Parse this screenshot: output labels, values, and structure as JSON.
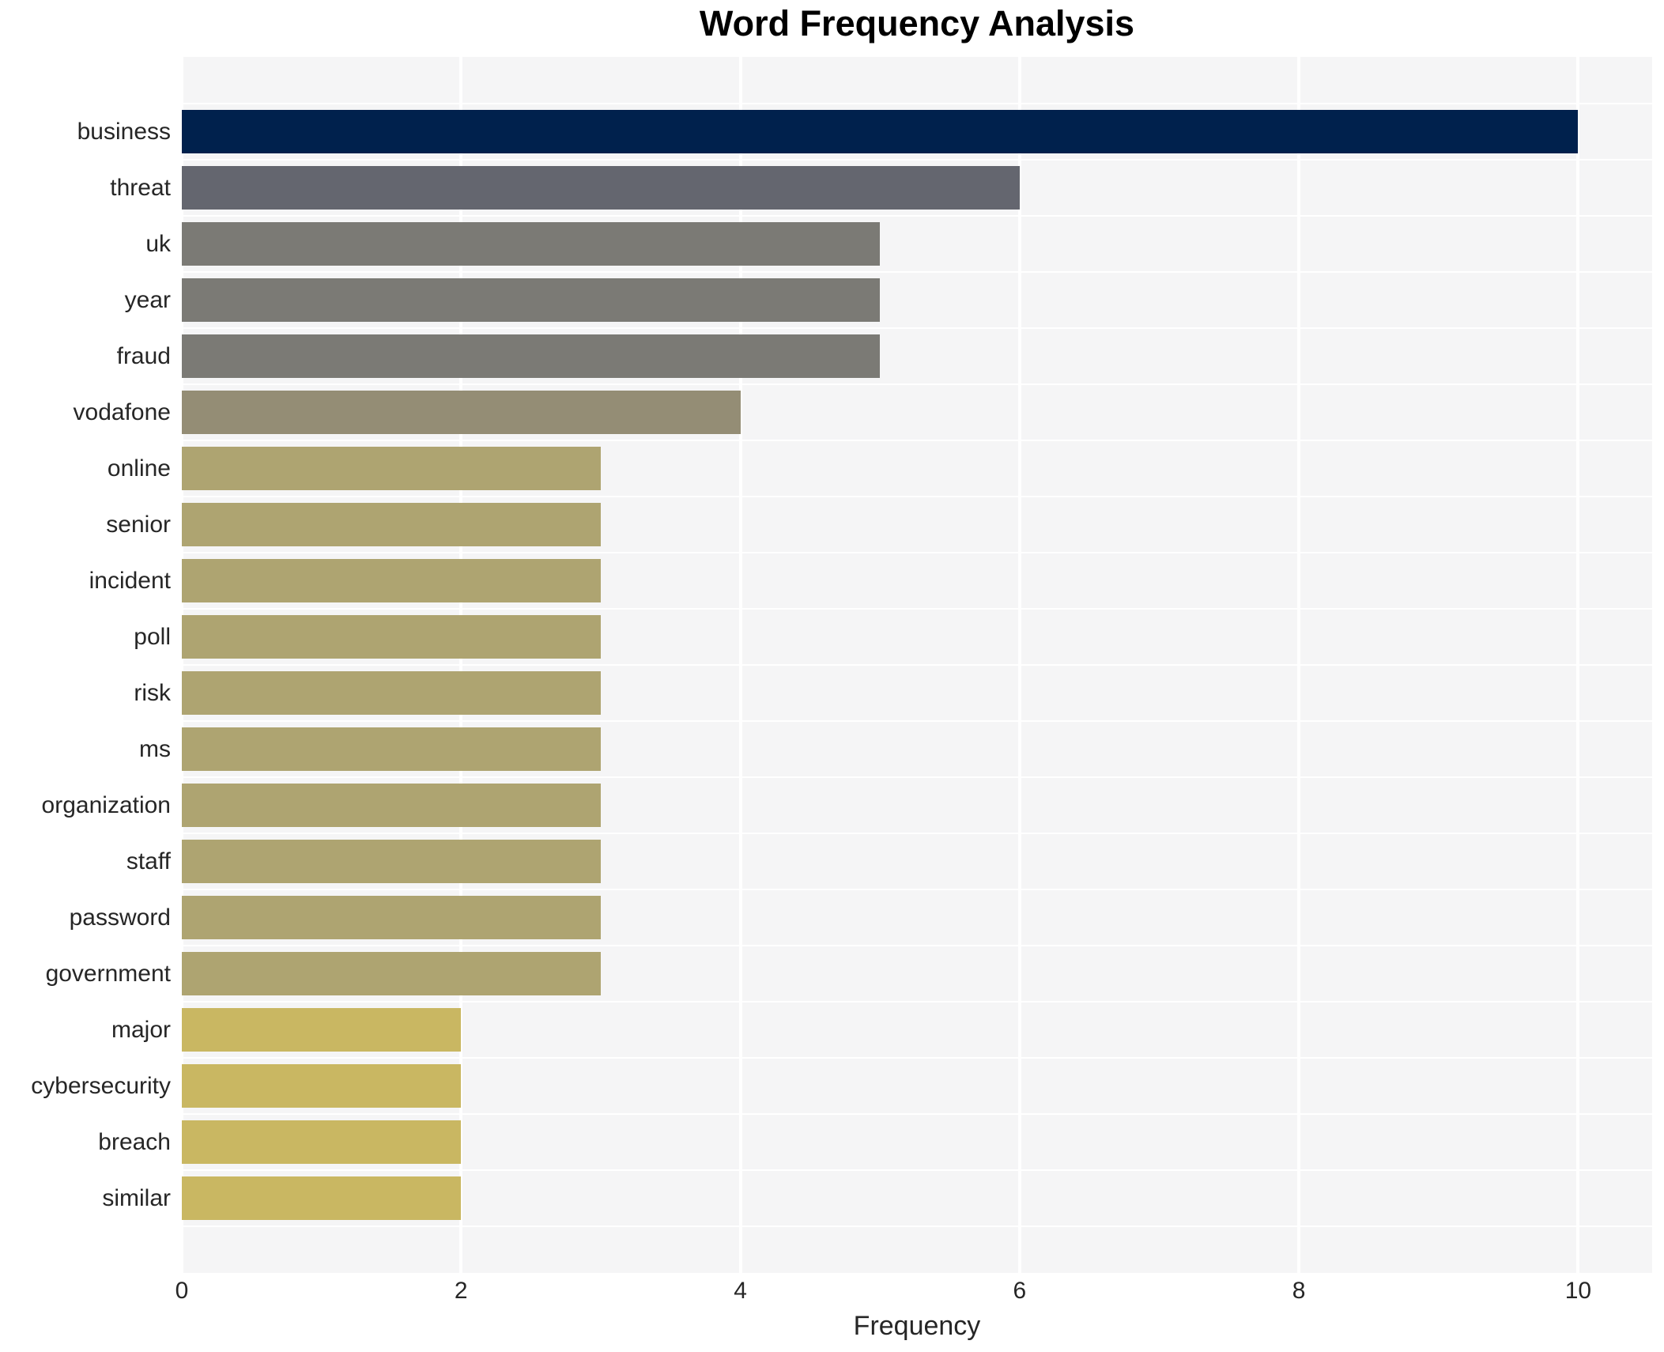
{
  "chart_data": {
    "type": "bar",
    "orientation": "horizontal",
    "title": "Word Frequency Analysis",
    "xlabel": "Frequency",
    "ylabel": "",
    "categories": [
      "business",
      "threat",
      "uk",
      "year",
      "fraud",
      "vodafone",
      "online",
      "senior",
      "incident",
      "poll",
      "risk",
      "ms",
      "organization",
      "staff",
      "password",
      "government",
      "major",
      "cybersecurity",
      "breach",
      "similar"
    ],
    "values": [
      10,
      6,
      5,
      5,
      5,
      4,
      3,
      3,
      3,
      3,
      3,
      3,
      3,
      3,
      3,
      3,
      2,
      2,
      2,
      2
    ],
    "bar_colors": [
      "#00214d",
      "#64666f",
      "#7b7a75",
      "#7b7a75",
      "#7b7a75",
      "#948d75",
      "#aea471",
      "#aea471",
      "#aea471",
      "#aea471",
      "#aea471",
      "#aea471",
      "#aea471",
      "#aea471",
      "#aea471",
      "#aea471",
      "#c9b762",
      "#c9b762",
      "#c9b762",
      "#c9b762"
    ],
    "xticks": [
      0,
      2,
      4,
      6,
      8,
      10
    ],
    "xlim": [
      0,
      10.53
    ],
    "grid": true,
    "legend_position": "none",
    "plot_background_color": "#f5f5f6",
    "gridline_color": "#ffffff",
    "title_color": "#000000",
    "tick_label_color": "#262626"
  }
}
